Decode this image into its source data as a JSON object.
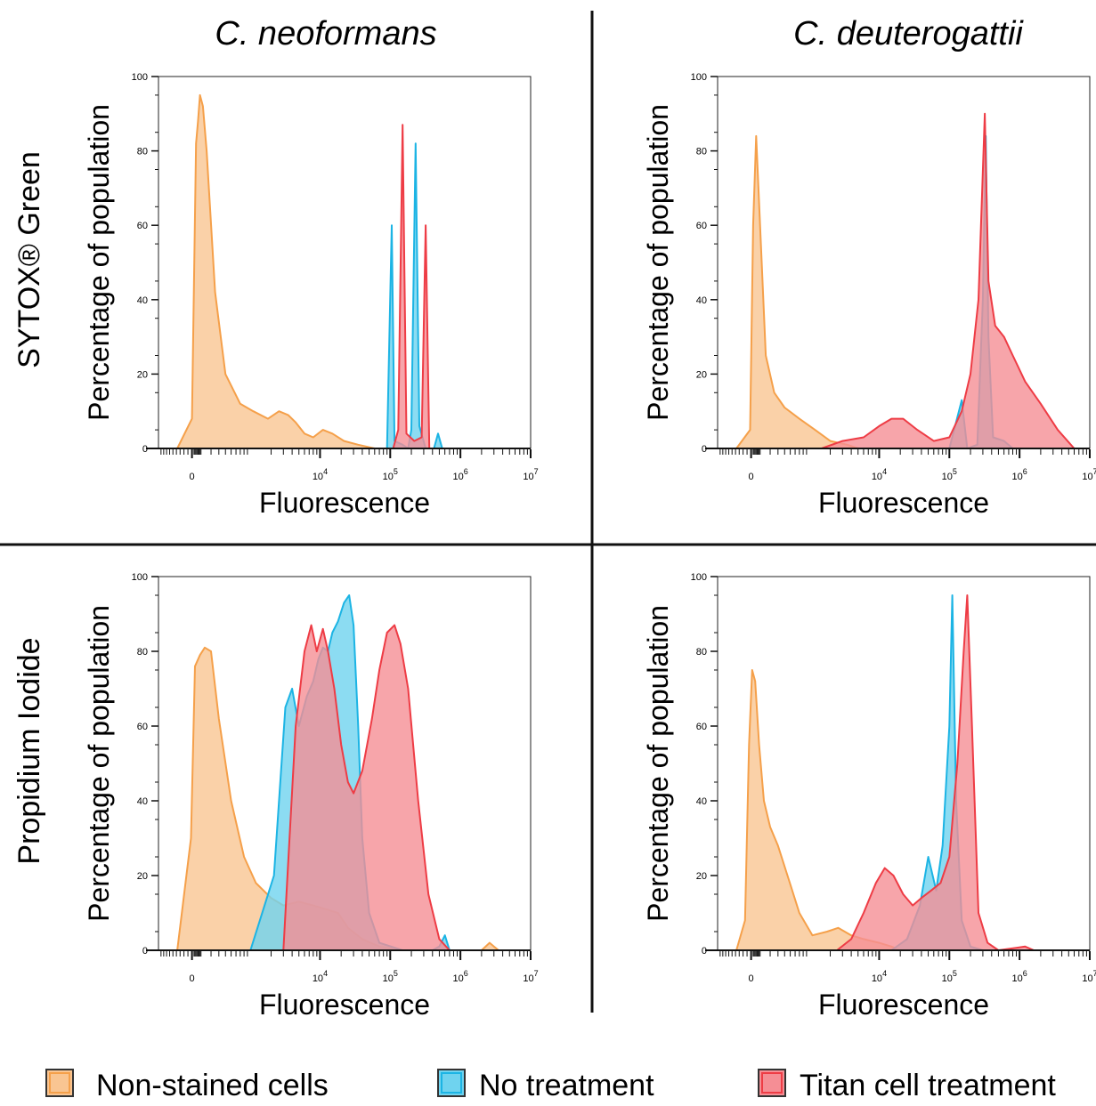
{
  "figure": {
    "columns": [
      "C. neoformans",
      "C. deuterogattii"
    ],
    "rows": [
      "SYTOX® Green",
      "Propidium Iodide"
    ],
    "legend": [
      {
        "label": "Non-stained cells",
        "fill": "#f9c592",
        "stroke": "#f5a04a"
      },
      {
        "label": "No treatment",
        "fill": "#6fd3ef",
        "stroke": "#1cb4e4"
      },
      {
        "label": "Titan cell treatment",
        "fill": "#f58e95",
        "stroke": "#ee3c45"
      }
    ]
  },
  "chart_data": [
    {
      "type": "area",
      "column": "C. neoformans",
      "row": "SYTOX® Green",
      "xlabel": "Fluorescence",
      "ylabel": "Percentage of population",
      "ylim": [
        0,
        100
      ],
      "yticks": [
        "0",
        "20",
        "40",
        "60",
        "80",
        "100"
      ],
      "xticks": [
        "0",
        "10^4",
        "10^5",
        "10^6",
        "10^7"
      ],
      "x_scale": "biexponential",
      "series": [
        {
          "name": "Non-stained cells",
          "points": [
            [
              -150,
              0
            ],
            [
              0,
              8
            ],
            [
              40,
              82
            ],
            [
              60,
              88
            ],
            [
              80,
              95
            ],
            [
              110,
              92
            ],
            [
              150,
              80
            ],
            [
              250,
              42
            ],
            [
              400,
              20
            ],
            [
              700,
              12
            ],
            [
              1100,
              10
            ],
            [
              1800,
              8
            ],
            [
              2600,
              10
            ],
            [
              3500,
              9
            ],
            [
              4500,
              7
            ],
            [
              6000,
              4
            ],
            [
              8000,
              3
            ],
            [
              11000,
              5
            ],
            [
              15000,
              4
            ],
            [
              22000,
              2
            ],
            [
              35000,
              1
            ],
            [
              60000,
              0
            ]
          ]
        },
        {
          "name": "No treatment",
          "points": [
            [
              60000,
              0
            ],
            [
              90000,
              0
            ],
            [
              105000,
              60
            ],
            [
              115000,
              2
            ],
            [
              150000,
              1
            ],
            [
              180000,
              0
            ],
            [
              200000,
              5
            ],
            [
              230000,
              82
            ],
            [
              260000,
              6
            ],
            [
              320000,
              0
            ],
            [
              420000,
              0
            ],
            [
              480000,
              4
            ],
            [
              550000,
              0
            ]
          ]
        },
        {
          "name": "Titan cell treatment",
          "points": [
            [
              110000,
              0
            ],
            [
              130000,
              5
            ],
            [
              150000,
              87
            ],
            [
              170000,
              4
            ],
            [
              220000,
              2
            ],
            [
              280000,
              3
            ],
            [
              320000,
              60
            ],
            [
              360000,
              0
            ]
          ]
        }
      ]
    },
    {
      "type": "area",
      "column": "C. deuterogattii",
      "row": "SYTOX® Green",
      "xlabel": "Fluorescence",
      "ylabel": "Percentage of population",
      "ylim": [
        0,
        100
      ],
      "yticks": [
        "0",
        "20",
        "40",
        "60",
        "80",
        "100"
      ],
      "xticks": [
        "0",
        "10^4",
        "10^5",
        "10^6",
        "10^7"
      ],
      "x_scale": "biexponential",
      "series": [
        {
          "name": "Non-stained cells",
          "points": [
            [
              -150,
              0
            ],
            [
              -10,
              5
            ],
            [
              20,
              60
            ],
            [
              50,
              84
            ],
            [
              90,
              60
            ],
            [
              150,
              25
            ],
            [
              250,
              15
            ],
            [
              400,
              11
            ],
            [
              700,
              8
            ],
            [
              1200,
              5
            ],
            [
              2000,
              2
            ],
            [
              3500,
              1
            ],
            [
              5000,
              0
            ]
          ]
        },
        {
          "name": "No treatment",
          "points": [
            [
              100000,
              0
            ],
            [
              150000,
              13
            ],
            [
              180000,
              0
            ],
            [
              250000,
              1
            ],
            [
              300000,
              40
            ],
            [
              330000,
              84
            ],
            [
              360000,
              30
            ],
            [
              420000,
              3
            ],
            [
              600000,
              2
            ],
            [
              800000,
              0
            ]
          ]
        },
        {
          "name": "Titan cell treatment",
          "points": [
            [
              1500,
              0
            ],
            [
              3000,
              2
            ],
            [
              6000,
              3
            ],
            [
              10000,
              6
            ],
            [
              15000,
              8
            ],
            [
              22000,
              8
            ],
            [
              35000,
              5
            ],
            [
              60000,
              2
            ],
            [
              100000,
              3
            ],
            [
              150000,
              10
            ],
            [
              200000,
              20
            ],
            [
              260000,
              40
            ],
            [
              320000,
              90
            ],
            [
              360000,
              45
            ],
            [
              450000,
              33
            ],
            [
              600000,
              30
            ],
            [
              800000,
              25
            ],
            [
              1200000,
              18
            ],
            [
              2000000,
              12
            ],
            [
              3500000,
              5
            ],
            [
              6000000,
              0
            ]
          ]
        }
      ]
    },
    {
      "type": "area",
      "column": "C. neoformans",
      "row": "Propidium Iodide",
      "xlabel": "Fluorescence",
      "ylabel": "Percentage of population",
      "ylim": [
        0,
        100
      ],
      "yticks": [
        "0",
        "20",
        "40",
        "60",
        "80",
        "100"
      ],
      "xticks": [
        "0",
        "10^4",
        "10^5",
        "10^6",
        "10^7"
      ],
      "x_scale": "biexponential",
      "series": [
        {
          "name": "Non-stained cells",
          "points": [
            [
              -150,
              0
            ],
            [
              -10,
              30
            ],
            [
              30,
              76
            ],
            [
              80,
              79
            ],
            [
              130,
              81
            ],
            [
              200,
              80
            ],
            [
              300,
              62
            ],
            [
              500,
              40
            ],
            [
              800,
              25
            ],
            [
              1200,
              18
            ],
            [
              2000,
              14
            ],
            [
              3000,
              12
            ],
            [
              5000,
              13
            ],
            [
              8000,
              12
            ],
            [
              12000,
              11
            ],
            [
              18000,
              10
            ],
            [
              25000,
              6
            ],
            [
              40000,
              3
            ],
            [
              70000,
              1
            ],
            [
              150000,
              0
            ],
            [
              2000000,
              0
            ],
            [
              2600000,
              2
            ],
            [
              3000000,
              1
            ],
            [
              3500000,
              0
            ]
          ]
        },
        {
          "name": "No treatment",
          "points": [
            [
              1000,
              0
            ],
            [
              2200,
              20
            ],
            [
              3200,
              65
            ],
            [
              4000,
              70
            ],
            [
              5000,
              60
            ],
            [
              6500,
              68
            ],
            [
              8000,
              72
            ],
            [
              9500,
              78
            ],
            [
              11000,
              81
            ],
            [
              13000,
              80
            ],
            [
              15000,
              85
            ],
            [
              18000,
              88
            ],
            [
              22000,
              93
            ],
            [
              26000,
              95
            ],
            [
              30000,
              87
            ],
            [
              35000,
              60
            ],
            [
              40000,
              30
            ],
            [
              50000,
              10
            ],
            [
              70000,
              2
            ],
            [
              150000,
              0
            ],
            [
              400000,
              0
            ],
            [
              500000,
              1
            ],
            [
              600000,
              4
            ],
            [
              700000,
              0
            ]
          ]
        },
        {
          "name": "Titan cell treatment",
          "points": [
            [
              3000,
              0
            ],
            [
              4500,
              60
            ],
            [
              6000,
              80
            ],
            [
              7500,
              87
            ],
            [
              9000,
              80
            ],
            [
              11000,
              86
            ],
            [
              13000,
              80
            ],
            [
              16000,
              70
            ],
            [
              20000,
              55
            ],
            [
              25000,
              45
            ],
            [
              30000,
              42
            ],
            [
              40000,
              48
            ],
            [
              55000,
              62
            ],
            [
              70000,
              75
            ],
            [
              90000,
              85
            ],
            [
              115000,
              87
            ],
            [
              140000,
              82
            ],
            [
              180000,
              70
            ],
            [
              250000,
              40
            ],
            [
              350000,
              15
            ],
            [
              500000,
              3
            ],
            [
              700000,
              0
            ]
          ]
        }
      ]
    },
    {
      "type": "area",
      "column": "C. deuterogattii",
      "row": "Propidium Iodide",
      "xlabel": "Fluorescence",
      "ylabel": "Percentage of population",
      "ylim": [
        0,
        100
      ],
      "yticks": [
        "0",
        "20",
        "40",
        "60",
        "80",
        "100"
      ],
      "xticks": [
        "0",
        "10^4",
        "10^5",
        "10^6",
        "10^7"
      ],
      "x_scale": "biexponential",
      "series": [
        {
          "name": "Non-stained cells",
          "points": [
            [
              -150,
              0
            ],
            [
              -60,
              8
            ],
            [
              -20,
              55
            ],
            [
              10,
              75
            ],
            [
              40,
              72
            ],
            [
              80,
              55
            ],
            [
              130,
              40
            ],
            [
              200,
              33
            ],
            [
              300,
              28
            ],
            [
              450,
              20
            ],
            [
              700,
              10
            ],
            [
              1100,
              4
            ],
            [
              1800,
              5
            ],
            [
              2600,
              6
            ],
            [
              4000,
              4
            ],
            [
              6000,
              3
            ],
            [
              10000,
              2
            ],
            [
              15000,
              1
            ],
            [
              20000,
              0
            ]
          ]
        },
        {
          "name": "No treatment",
          "points": [
            [
              15000,
              0
            ],
            [
              25000,
              3
            ],
            [
              38000,
              12
            ],
            [
              50000,
              25
            ],
            [
              65000,
              16
            ],
            [
              80000,
              28
            ],
            [
              100000,
              60
            ],
            [
              110000,
              95
            ],
            [
              125000,
              40
            ],
            [
              150000,
              8
            ],
            [
              200000,
              1
            ],
            [
              300000,
              0
            ]
          ]
        },
        {
          "name": "Titan cell treatment",
          "points": [
            [
              2500,
              0
            ],
            [
              4000,
              3
            ],
            [
              6000,
              10
            ],
            [
              9000,
              18
            ],
            [
              12000,
              22
            ],
            [
              16000,
              20
            ],
            [
              22000,
              15
            ],
            [
              30000,
              12
            ],
            [
              40000,
              14
            ],
            [
              55000,
              16
            ],
            [
              75000,
              18
            ],
            [
              100000,
              25
            ],
            [
              130000,
              50
            ],
            [
              160000,
              80
            ],
            [
              180000,
              95
            ],
            [
              210000,
              60
            ],
            [
              260000,
              10
            ],
            [
              350000,
              2
            ],
            [
              500000,
              0
            ],
            [
              1200000,
              1
            ],
            [
              1600000,
              0
            ]
          ]
        }
      ]
    }
  ]
}
